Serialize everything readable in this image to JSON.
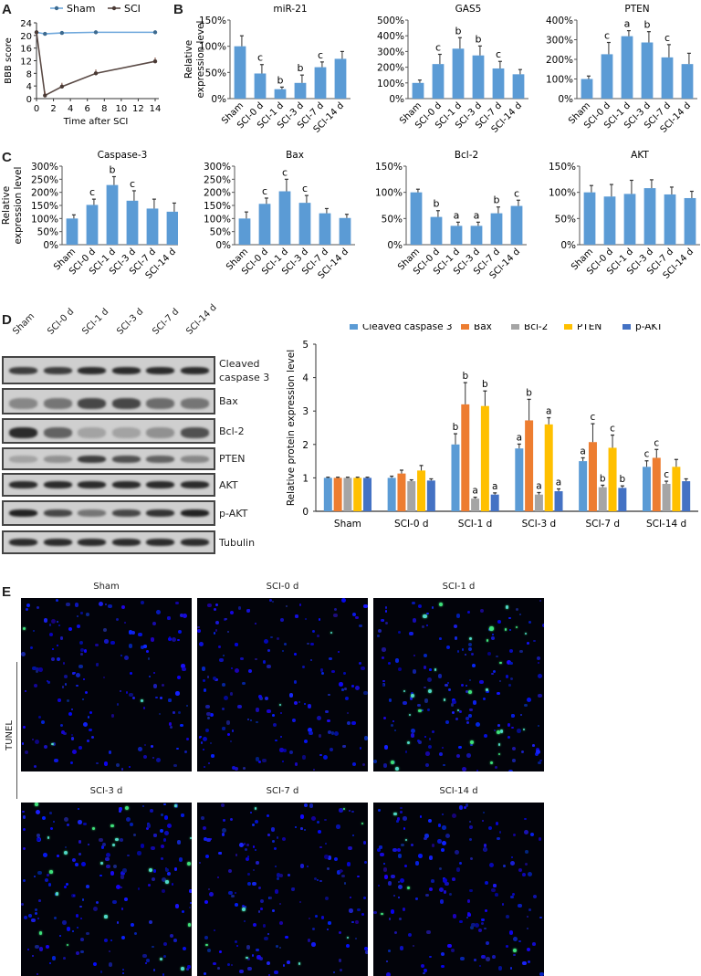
{
  "panels": {
    "A": "A",
    "B": "B",
    "C": "C",
    "D": "D",
    "E": "E"
  },
  "groups": [
    "Sham",
    "SCI-0 d",
    "SCI-1 d",
    "SCI-3 d",
    "SCI-7 d",
    "SCI-14 d"
  ],
  "colors": {
    "bar_blue": "#5b9bd5",
    "sham_line": "#6fa8dc",
    "sci_line": "#5a4a45",
    "cleaved_caspase3": "#5b9bd5",
    "bax": "#ed7d31",
    "bcl2": "#a5a5a5",
    "pten": "#ffc000",
    "pakt": "#4472c4"
  },
  "chart_data": [
    {
      "id": "A",
      "type": "line",
      "title": "",
      "xlabel": "Time after SCI",
      "ylabel": "BBB score",
      "xlim": [
        0,
        14
      ],
      "ylim": [
        0,
        24
      ],
      "xticks": [
        0,
        2,
        4,
        6,
        8,
        10,
        12,
        14
      ],
      "yticks": [
        0,
        4,
        8,
        12,
        16,
        20,
        24
      ],
      "legend": [
        "Sham",
        "SCI"
      ],
      "series": [
        {
          "name": "Sham",
          "x": [
            0,
            1,
            3,
            7,
            14
          ],
          "values": [
            21,
            20.5,
            20.8,
            21,
            21
          ]
        },
        {
          "name": "SCI",
          "x": [
            0,
            1,
            3,
            7,
            14
          ],
          "values": [
            21,
            1,
            3.8,
            8,
            11.8
          ]
        }
      ]
    },
    {
      "id": "B-miR-21",
      "type": "bar",
      "title": "miR-21",
      "ylabel": "Relative expression level",
      "yticks": [
        "0%",
        "50%",
        "100%",
        "150%"
      ],
      "ymax": 150,
      "values": [
        100,
        48,
        18,
        30,
        60,
        76
      ],
      "errors": [
        20,
        17,
        4,
        15,
        10,
        14
      ],
      "annotations": [
        "",
        "c",
        "b",
        "b",
        "c",
        ""
      ]
    },
    {
      "id": "B-GAS5",
      "type": "bar",
      "title": "GAS5",
      "yticks": [
        "0%",
        "100%",
        "200%",
        "300%",
        "400%",
        "500%"
      ],
      "ymax": 500,
      "values": [
        100,
        220,
        318,
        275,
        192,
        155
      ],
      "errors": [
        18,
        62,
        70,
        60,
        45,
        30
      ],
      "annotations": [
        "",
        "c",
        "b",
        "b",
        "c",
        ""
      ]
    },
    {
      "id": "B-PTEN",
      "type": "bar",
      "title": "PTEN",
      "yticks": [
        "0%",
        "100%",
        "200%",
        "300%",
        "400%"
      ],
      "ymax": 400,
      "values": [
        100,
        226,
        318,
        286,
        210,
        176
      ],
      "errors": [
        15,
        60,
        28,
        55,
        65,
        55
      ],
      "annotations": [
        "",
        "c",
        "a",
        "b",
        "c",
        ""
      ]
    },
    {
      "id": "C-Caspase-3",
      "type": "bar",
      "title": "Caspase-3",
      "ylabel": "Relative expression level",
      "yticks": [
        "0%",
        "50%",
        "100%",
        "150%",
        "200%",
        "250%",
        "300%"
      ],
      "ymax": 300,
      "values": [
        100,
        152,
        228,
        168,
        138,
        126
      ],
      "errors": [
        14,
        22,
        32,
        38,
        36,
        33
      ],
      "annotations": [
        "",
        "c",
        "b",
        "c",
        "",
        ""
      ]
    },
    {
      "id": "C-Bax",
      "type": "bar",
      "title": "Bax",
      "yticks": [
        "0%",
        "50%",
        "100%",
        "150%",
        "200%",
        "250%",
        "300%"
      ],
      "ymax": 300,
      "values": [
        100,
        156,
        204,
        160,
        120,
        102
      ],
      "errors": [
        25,
        22,
        46,
        28,
        18,
        14
      ],
      "annotations": [
        "",
        "c",
        "c",
        "c",
        "",
        ""
      ]
    },
    {
      "id": "C-Bcl-2",
      "type": "bar",
      "title": "Bcl-2",
      "yticks": [
        "0%",
        "50%",
        "100%",
        "150%"
      ],
      "ymax": 150,
      "values": [
        100,
        53,
        36,
        36,
        60,
        74
      ],
      "errors": [
        6,
        12,
        7,
        7,
        12,
        11
      ],
      "annotations": [
        "",
        "b",
        "a",
        "a",
        "b",
        "c"
      ]
    },
    {
      "id": "C-AKT",
      "type": "bar",
      "title": "AKT",
      "yticks": [
        "0%",
        "50%",
        "100%",
        "150%"
      ],
      "ymax": 150,
      "values": [
        100,
        92,
        97,
        108,
        96,
        89
      ],
      "errors": [
        13,
        23,
        26,
        16,
        14,
        13
      ],
      "annotations": [
        "",
        "",
        "",
        "",
        "",
        ""
      ]
    },
    {
      "id": "D-quant",
      "type": "bar",
      "ylabel": "Relative protein expression level",
      "ylim": [
        0,
        5
      ],
      "yticks": [
        0,
        1,
        2,
        3,
        4,
        5
      ],
      "legend_position": "top",
      "series": [
        {
          "name": "Cleaved caspase 3",
          "values": [
            1.0,
            1.0,
            2.0,
            1.88,
            1.5,
            1.33
          ],
          "errors": [
            0.02,
            0.05,
            0.32,
            0.13,
            0.1,
            0.18
          ],
          "annotations": [
            "",
            "",
            "b",
            "a",
            "a",
            "c"
          ]
        },
        {
          "name": "Bax",
          "values": [
            1.0,
            1.13,
            3.2,
            2.72,
            2.07,
            1.6
          ],
          "errors": [
            0.02,
            0.1,
            0.65,
            0.63,
            0.55,
            0.25
          ],
          "annotations": [
            "",
            "",
            "b",
            "b",
            "c",
            "c"
          ]
        },
        {
          "name": "Bcl-2",
          "values": [
            1.0,
            0.9,
            0.38,
            0.5,
            0.72,
            0.82
          ],
          "errors": [
            0.02,
            0.04,
            0.04,
            0.06,
            0.06,
            0.08
          ],
          "annotations": [
            "",
            "",
            "a",
            "a",
            "b",
            "c"
          ]
        },
        {
          "name": "PTEN",
          "values": [
            1.0,
            1.22,
            3.15,
            2.6,
            1.9,
            1.33
          ],
          "errors": [
            0.02,
            0.15,
            0.45,
            0.2,
            0.38,
            0.22
          ],
          "annotations": [
            "",
            "",
            "b",
            "a",
            "c",
            ""
          ]
        },
        {
          "name": "p-AKT",
          "values": [
            1.0,
            0.92,
            0.5,
            0.6,
            0.7,
            0.9
          ],
          "errors": [
            0.02,
            0.05,
            0.05,
            0.07,
            0.06,
            0.07
          ],
          "annotations": [
            "",
            "",
            "a",
            "a",
            "b",
            ""
          ]
        }
      ]
    }
  ],
  "blot": {
    "rows": [
      "Cleaved caspase 3",
      "Bax",
      "Bcl-2",
      "PTEN",
      "AKT",
      "p-AKT",
      "Tubulin"
    ],
    "row_label_lines": [
      [
        "Cleaved",
        "caspase 3"
      ],
      [
        "Bax"
      ],
      [
        "Bcl-2"
      ],
      [
        "PTEN"
      ],
      [
        "AKT"
      ],
      [
        "p-AKT"
      ],
      [
        "Tubulin"
      ]
    ],
    "intensity": [
      [
        0.75,
        0.75,
        0.85,
        0.85,
        0.85,
        0.85
      ],
      [
        0.35,
        0.45,
        0.7,
        0.7,
        0.5,
        0.45
      ],
      [
        0.85,
        0.55,
        0.2,
        0.2,
        0.3,
        0.65
      ],
      [
        0.2,
        0.3,
        0.75,
        0.65,
        0.55,
        0.35
      ],
      [
        0.85,
        0.85,
        0.85,
        0.85,
        0.85,
        0.85
      ],
      [
        0.9,
        0.7,
        0.45,
        0.7,
        0.8,
        0.9
      ],
      [
        0.85,
        0.85,
        0.85,
        0.85,
        0.85,
        0.85
      ]
    ]
  },
  "tunel": {
    "side_label": "TUNEL",
    "images": [
      "Sham",
      "SCI-0 d",
      "SCI-1 d",
      "SCI-3 d",
      "SCI-7 d",
      "SCI-14 d"
    ],
    "green_density": [
      3,
      2,
      30,
      22,
      8,
      5
    ]
  }
}
